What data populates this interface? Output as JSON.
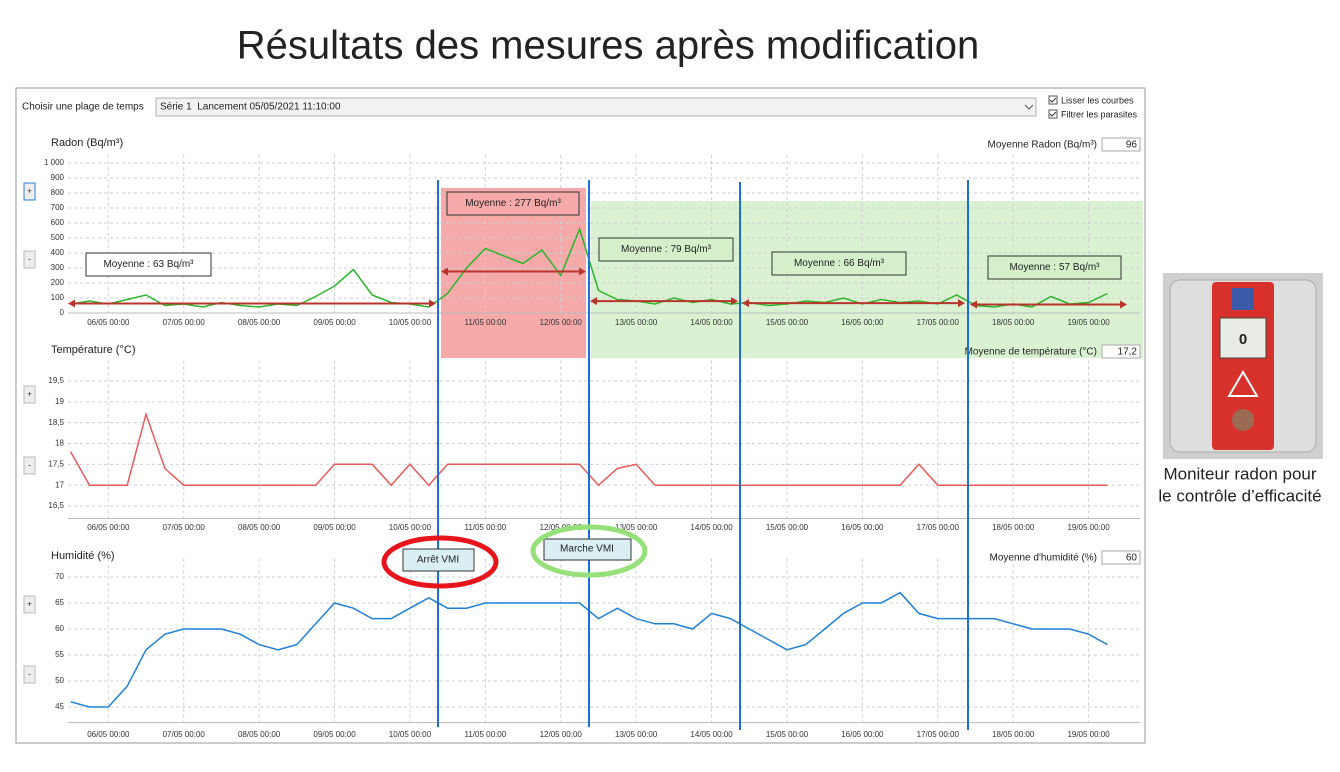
{
  "header": {
    "title": "Résultats des mesures après modification"
  },
  "controls": {
    "range_label": "Choisir une plage de temps",
    "range_value": "Série 1  Lancement 05/05/2021 11:10:00",
    "options": [
      "Lisser les courbes",
      "Filtrer les parasites"
    ],
    "zoom": [
      "+",
      "-"
    ]
  },
  "markers": [
    "Arrêt VMI",
    "Marche VMI"
  ],
  "device": {
    "reading": "0",
    "caption": [
      "Moniteur radon pour",
      "le contrôle d’efficacité"
    ]
  },
  "chart_data": [
    {
      "type": "line",
      "title": "Radon (Bq/m³)",
      "average_label": "Moyenne Radon (Bq/m³)",
      "average": "96",
      "color": "#2db52d",
      "grid": true,
      "xlim": [
        "05/05 11:10",
        "19/05 10:00"
      ],
      "xticks": [
        "06/05 00:00",
        "07/05 00:00",
        "08/05 00:00",
        "09/05 00:00",
        "10/05 00:00",
        "11/05 00:00",
        "12/05 00:00",
        "13/05 00:00",
        "14/05 00:00",
        "15/05 00:00",
        "16/05 00:00",
        "17/05 00:00",
        "18/05 00:00",
        "19/05 00:00"
      ],
      "ylim": [
        0,
        1000
      ],
      "yticks": [
        0,
        100,
        200,
        300,
        400,
        500,
        600,
        700,
        800,
        900,
        {
          "value": 1000,
          "label": "1 000"
        }
      ],
      "x": [
        "05/05 12:00",
        "05/05 18:00",
        "06/05 00:00",
        "06/05 06:00",
        "06/05 12:00",
        "06/05 18:00",
        "07/05 00:00",
        "07/05 06:00",
        "07/05 12:00",
        "07/05 18:00",
        "08/05 00:00",
        "08/05 06:00",
        "08/05 12:00",
        "08/05 18:00",
        "09/05 00:00",
        "09/05 06:00",
        "09/05 12:00",
        "09/05 18:00",
        "10/05 00:00",
        "10/05 06:00",
        "10/05 12:00",
        "10/05 18:00",
        "11/05 00:00",
        "11/05 06:00",
        "11/05 12:00",
        "11/05 18:00",
        "12/05 00:00",
        "12/05 06:00",
        "12/05 12:00",
        "12/05 18:00",
        "13/05 00:00",
        "13/05 06:00",
        "13/05 12:00",
        "13/05 18:00",
        "14/05 00:00",
        "14/05 06:00",
        "14/05 12:00",
        "14/05 18:00",
        "15/05 00:00",
        "15/05 06:00",
        "15/05 12:00",
        "15/05 18:00",
        "16/05 00:00",
        "16/05 06:00",
        "16/05 12:00",
        "16/05 18:00",
        "17/05 00:00",
        "17/05 06:00",
        "17/05 12:00",
        "17/05 18:00",
        "18/05 00:00",
        "18/05 06:00",
        "18/05 12:00",
        "18/05 18:00",
        "19/05 00:00",
        "19/05 06:00"
      ],
      "values": [
        60,
        80,
        60,
        90,
        120,
        50,
        60,
        40,
        70,
        50,
        40,
        60,
        50,
        110,
        180,
        290,
        120,
        70,
        60,
        40,
        130,
        300,
        430,
        380,
        330,
        420,
        250,
        560,
        150,
        90,
        80,
        60,
        100,
        70,
        90,
        60,
        70,
        50,
        60,
        80,
        70,
        100,
        60,
        90,
        70,
        80,
        60,
        120,
        50,
        40,
        60,
        40,
        110,
        60,
        70,
        130
      ],
      "annotations": [
        {
          "text": "Moyenne : 63 Bq/m³",
          "value": 63
        },
        {
          "text": "Moyenne : 277 Bq/m³",
          "value": 277
        },
        {
          "text": "Moyenne : 79 Bq/m³",
          "value": 79
        },
        {
          "text": "Moyenne : 66 Bq/m³",
          "value": 66
        },
        {
          "text": "Moyenne : 57 Bq/m³",
          "value": 57
        }
      ]
    },
    {
      "type": "line",
      "title": "Température (°C)",
      "average_label": "Moyenne de température (°C)",
      "average": "17,2",
      "color": "#e85a5a",
      "grid": true,
      "xlim": [
        "05/05 11:10",
        "19/05 10:00"
      ],
      "xticks": [
        "06/05 00:00",
        "07/05 00:00",
        "08/05 00:00",
        "09/05 00:00",
        "10/05 00:00",
        "11/05 00:00",
        "12/05 00:00",
        "13/05 00:00",
        "14/05 00:00",
        "15/05 00:00",
        "16/05 00:00",
        "17/05 00:00",
        "18/05 00:00",
        "19/05 00:00"
      ],
      "ylim": [
        16.2,
        19.8
      ],
      "yticks": [
        {
          "value": 16.5,
          "label": "16,5"
        },
        17,
        {
          "value": 17.5,
          "label": "17,5"
        },
        18,
        {
          "value": 18.5,
          "label": "18,5"
        },
        19,
        {
          "value": 19.5,
          "label": "19,5"
        }
      ],
      "x": [
        "05/05 12:00",
        "05/05 18:00",
        "06/05 00:00",
        "06/05 06:00",
        "06/05 12:00",
        "06/05 18:00",
        "07/05 00:00",
        "07/05 06:00",
        "07/05 12:00",
        "07/05 18:00",
        "08/05 00:00",
        "08/05 06:00",
        "08/05 12:00",
        "08/05 18:00",
        "09/05 00:00",
        "09/05 06:00",
        "09/05 12:00",
        "09/05 18:00",
        "10/05 00:00",
        "10/05 06:00",
        "10/05 12:00",
        "10/05 18:00",
        "11/05 00:00",
        "11/05 06:00",
        "11/05 12:00",
        "11/05 18:00",
        "12/05 00:00",
        "12/05 06:00",
        "12/05 12:00",
        "12/05 18:00",
        "13/05 00:00",
        "13/05 06:00",
        "13/05 12:00",
        "13/05 18:00",
        "14/05 00:00",
        "14/05 06:00",
        "14/05 12:00",
        "14/05 18:00",
        "15/05 00:00",
        "15/05 06:00",
        "15/05 12:00",
        "15/05 18:00",
        "16/05 00:00",
        "16/05 06:00",
        "16/05 12:00",
        "16/05 18:00",
        "17/05 00:00",
        "17/05 06:00",
        "17/05 12:00",
        "17/05 18:00",
        "18/05 00:00",
        "18/05 06:00",
        "18/05 12:00",
        "18/05 18:00",
        "19/05 00:00",
        "19/05 06:00"
      ],
      "values": [
        17.8,
        17,
        17,
        17,
        18.7,
        17.4,
        17,
        17,
        17,
        17,
        17,
        17,
        17,
        17,
        17.5,
        17.5,
        17.5,
        17,
        17.5,
        17,
        17.5,
        17.5,
        17.5,
        17.5,
        17.5,
        17.5,
        17.5,
        17.5,
        17,
        17.4,
        17.5,
        17,
        17,
        17,
        17,
        17,
        17,
        17,
        17,
        17,
        17,
        17,
        17,
        17,
        17,
        17.5,
        17,
        17,
        17,
        17,
        17,
        17,
        17,
        17,
        17,
        17
      ]
    },
    {
      "type": "line",
      "title": "Humidité (%)",
      "average_label": "Moyenne d'humidité (%)",
      "average": "60",
      "color": "#1e80d6",
      "grid": true,
      "xlim": [
        "05/05 11:10",
        "19/05 10:00"
      ],
      "xticks": [
        "06/05 00:00",
        "07/05 00:00",
        "08/05 00:00",
        "09/05 00:00",
        "10/05 00:00",
        "11/05 00:00",
        "12/05 00:00",
        "13/05 00:00",
        "14/05 00:00",
        "15/05 00:00",
        "16/05 00:00",
        "17/05 00:00",
        "18/05 00:00",
        "19/05 00:00"
      ],
      "ylim": [
        42,
        72
      ],
      "yticks": [
        45,
        50,
        55,
        60,
        65,
        70
      ],
      "x": [
        "05/05 12:00",
        "05/05 18:00",
        "06/05 00:00",
        "06/05 06:00",
        "06/05 12:00",
        "06/05 18:00",
        "07/05 00:00",
        "07/05 06:00",
        "07/05 12:00",
        "07/05 18:00",
        "08/05 00:00",
        "08/05 06:00",
        "08/05 12:00",
        "08/05 18:00",
        "09/05 00:00",
        "09/05 06:00",
        "09/05 12:00",
        "09/05 18:00",
        "10/05 00:00",
        "10/05 06:00",
        "10/05 12:00",
        "10/05 18:00",
        "11/05 00:00",
        "11/05 06:00",
        "11/05 12:00",
        "11/05 18:00",
        "12/05 00:00",
        "12/05 06:00",
        "12/05 12:00",
        "12/05 18:00",
        "13/05 00:00",
        "13/05 06:00",
        "13/05 12:00",
        "13/05 18:00",
        "14/05 00:00",
        "14/05 06:00",
        "14/05 12:00",
        "14/05 18:00",
        "15/05 00:00",
        "15/05 06:00",
        "15/05 12:00",
        "15/05 18:00",
        "16/05 00:00",
        "16/05 06:00",
        "16/05 12:00",
        "16/05 18:00",
        "17/05 00:00",
        "17/05 06:00",
        "17/05 12:00",
        "17/05 18:00",
        "18/05 00:00",
        "18/05 06:00",
        "18/05 12:00",
        "18/05 18:00",
        "19/05 00:00",
        "19/05 06:00"
      ],
      "values": [
        46,
        45,
        45,
        49,
        56,
        59,
        60,
        60,
        60,
        59,
        57,
        56,
        57,
        61,
        65,
        64,
        62,
        62,
        64,
        66,
        64,
        64,
        65,
        65,
        65,
        65,
        65,
        65,
        62,
        64,
        62,
        61,
        61,
        60,
        63,
        62,
        60,
        58,
        56,
        57,
        60,
        63,
        65,
        65,
        67,
        63,
        62,
        62,
        62,
        62,
        61,
        60,
        60,
        60,
        59,
        57
      ]
    }
  ]
}
